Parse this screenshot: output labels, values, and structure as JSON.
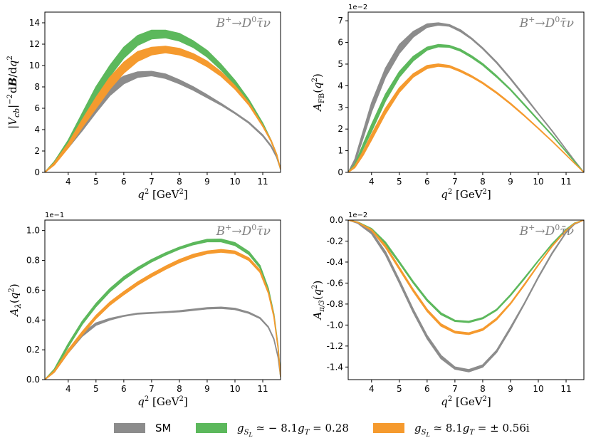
{
  "colors": {
    "sm": "#8c8c8c",
    "green": "#5cb85c",
    "orange": "#f59a2e"
  },
  "legend": [
    {
      "key": "sm",
      "label": "SM",
      "style": "sans"
    },
    {
      "key": "green",
      "label": "g_{S_L} ≃ −8.1g_T = 0.28",
      "style": "math",
      "base": "g",
      "sub": "S",
      "subsub": "L",
      "rest": " ≃ − 8.1",
      "base2": "g",
      "sub2": "T",
      "rest2": " = 0.28"
    },
    {
      "key": "orange",
      "label": "g_{S_L} ≃ 8.1g_T = ±0.56i",
      "style": "math",
      "base": "g",
      "sub": "S",
      "subsub": "L",
      "rest": " ≃ 8.1",
      "base2": "g",
      "sub2": "T",
      "rest2": " = ± 0.56i"
    }
  ],
  "chart_data": [
    {
      "type": "line",
      "panel": "top-left",
      "process": "B⁺→D⁰τ̄ν",
      "xlabel": "q² [GeV²]",
      "ylabel": "|V_cb|⁻² dB/dq²",
      "offset_text": "",
      "xlim": [
        3.16,
        11.64
      ],
      "ylim": [
        0,
        15
      ],
      "xticks": [
        4,
        5,
        6,
        7,
        8,
        9,
        10,
        11
      ],
      "yticks": [
        0,
        2,
        4,
        6,
        8,
        10,
        12,
        14
      ],
      "ytick_labels": [
        "0",
        "2",
        "4",
        "6",
        "8",
        "10",
        "12",
        "14"
      ],
      "grid": false,
      "series": [
        {
          "name": "SM",
          "key": "sm",
          "x": [
            3.16,
            3.5,
            4.0,
            4.5,
            5.0,
            5.5,
            6.0,
            6.5,
            7.0,
            7.5,
            8.0,
            8.5,
            9.0,
            9.5,
            10.0,
            10.5,
            11.0,
            11.3,
            11.5,
            11.64
          ],
          "lower": [
            0,
            0.8,
            2.3,
            3.9,
            5.6,
            7.2,
            8.3,
            8.9,
            9.05,
            8.8,
            8.3,
            7.7,
            7.0,
            6.3,
            5.5,
            4.6,
            3.4,
            2.4,
            1.4,
            0.3
          ],
          "upper": [
            0,
            1.0,
            2.8,
            4.6,
            6.5,
            8.2,
            9.0,
            9.4,
            9.45,
            9.2,
            8.65,
            8.0,
            7.25,
            6.45,
            5.6,
            4.7,
            3.5,
            2.5,
            1.5,
            0.3
          ]
        },
        {
          "name": "g_SL ≃ −8.1g_T = 0.28",
          "key": "green",
          "x": [
            3.16,
            3.5,
            4.0,
            4.5,
            5.0,
            5.5,
            6.0,
            6.5,
            7.0,
            7.5,
            8.0,
            8.5,
            9.0,
            9.5,
            10.0,
            10.5,
            11.0,
            11.3,
            11.5,
            11.64
          ],
          "lower": [
            0,
            0.8,
            2.6,
            4.8,
            7.0,
            9.0,
            10.7,
            11.9,
            12.5,
            12.6,
            12.3,
            11.7,
            10.8,
            9.6,
            8.2,
            6.5,
            4.4,
            2.9,
            1.6,
            0.3
          ],
          "upper": [
            0,
            1.0,
            3.0,
            5.5,
            8.0,
            10.0,
            11.7,
            12.8,
            13.3,
            13.3,
            13.0,
            12.3,
            11.4,
            10.1,
            8.6,
            6.8,
            4.6,
            3.0,
            1.7,
            0.3
          ]
        },
        {
          "name": "g_SL ≃ 8.1g_T = ±0.56i",
          "key": "orange",
          "x": [
            3.16,
            3.5,
            4.0,
            4.5,
            5.0,
            5.5,
            6.0,
            6.5,
            7.0,
            7.5,
            8.0,
            8.5,
            9.0,
            9.5,
            10.0,
            10.5,
            11.0,
            11.3,
            11.5,
            11.64
          ],
          "lower": [
            0,
            0.7,
            2.3,
            4.2,
            6.0,
            7.8,
            9.3,
            10.4,
            11.0,
            11.2,
            11.0,
            10.6,
            9.9,
            9.0,
            7.8,
            6.3,
            4.3,
            2.9,
            1.6,
            0.3
          ],
          "upper": [
            0,
            0.9,
            2.7,
            4.9,
            7.0,
            8.9,
            10.3,
            11.3,
            11.7,
            11.8,
            11.6,
            11.1,
            10.4,
            9.4,
            8.1,
            6.5,
            4.4,
            3.0,
            1.7,
            0.3
          ]
        }
      ]
    },
    {
      "type": "line",
      "panel": "top-right",
      "process": "B⁺→D⁰τ̄ν",
      "xlabel": "q² [GeV²]",
      "ylabel": "A_FB(q²)",
      "offset_text": "1e−2",
      "xlim": [
        3.16,
        11.64
      ],
      "ylim": [
        0,
        7.4
      ],
      "xticks": [
        4,
        5,
        6,
        7,
        8,
        9,
        10,
        11
      ],
      "yticks": [
        0,
        1,
        2,
        3,
        4,
        5,
        6,
        7
      ],
      "ytick_labels": [
        "0",
        "1",
        "2",
        "3",
        "4",
        "5",
        "6",
        "7"
      ],
      "grid": false,
      "series": [
        {
          "name": "SM",
          "key": "sm",
          "x": [
            3.16,
            3.4,
            3.7,
            4.0,
            4.5,
            5.0,
            5.5,
            6.0,
            6.4,
            6.8,
            7.2,
            7.6,
            8.0,
            8.5,
            9.0,
            9.5,
            10.0,
            10.5,
            11.0,
            11.3,
            11.64
          ],
          "lower": [
            0,
            0.45,
            1.6,
            2.8,
            4.4,
            5.5,
            6.25,
            6.7,
            6.8,
            6.75,
            6.5,
            6.15,
            5.7,
            5.05,
            4.3,
            3.5,
            2.7,
            1.9,
            1.05,
            0.55,
            0
          ],
          "upper": [
            0,
            0.6,
            1.9,
            3.2,
            4.8,
            5.9,
            6.5,
            6.85,
            6.9,
            6.82,
            6.58,
            6.2,
            5.75,
            5.1,
            4.35,
            3.55,
            2.72,
            1.92,
            1.06,
            0.55,
            0
          ]
        },
        {
          "name": "g_SL ≃ −8.1g_T = 0.28",
          "key": "green",
          "x": [
            3.16,
            3.4,
            3.7,
            4.0,
            4.5,
            5.0,
            5.5,
            6.0,
            6.4,
            6.8,
            7.2,
            7.6,
            8.0,
            8.5,
            9.0,
            9.5,
            10.0,
            10.5,
            11.0,
            11.3,
            11.64
          ],
          "lower": [
            0,
            0.3,
            1.1,
            1.9,
            3.3,
            4.4,
            5.15,
            5.65,
            5.8,
            5.78,
            5.6,
            5.3,
            4.95,
            4.4,
            3.8,
            3.1,
            2.4,
            1.7,
            0.95,
            0.5,
            0
          ],
          "upper": [
            0,
            0.38,
            1.3,
            2.2,
            3.6,
            4.65,
            5.35,
            5.78,
            5.9,
            5.86,
            5.68,
            5.38,
            5.02,
            4.46,
            3.84,
            3.14,
            2.43,
            1.72,
            0.96,
            0.5,
            0
          ]
        },
        {
          "name": "g_SL ≃ 8.1g_T = ±0.56i",
          "key": "orange",
          "x": [
            3.16,
            3.4,
            3.7,
            4.0,
            4.5,
            5.0,
            5.5,
            6.0,
            6.4,
            6.8,
            7.2,
            7.6,
            8.0,
            8.5,
            9.0,
            9.5,
            10.0,
            10.5,
            11.0,
            11.3,
            11.64
          ],
          "lower": [
            0,
            0.22,
            0.8,
            1.5,
            2.7,
            3.7,
            4.4,
            4.8,
            4.9,
            4.85,
            4.65,
            4.4,
            4.1,
            3.65,
            3.15,
            2.6,
            2.02,
            1.43,
            0.8,
            0.42,
            0
          ],
          "upper": [
            0,
            0.3,
            0.98,
            1.75,
            2.95,
            3.9,
            4.55,
            4.93,
            5.0,
            4.93,
            4.72,
            4.46,
            4.15,
            3.7,
            3.19,
            2.63,
            2.04,
            1.44,
            0.81,
            0.42,
            0
          ]
        }
      ]
    },
    {
      "type": "line",
      "panel": "bottom-left",
      "process": "B⁺→D⁰τ̄ν",
      "xlabel": "q² [GeV²]",
      "ylabel": "A_λ(q²)",
      "offset_text": "1e−1",
      "xlim": [
        3.16,
        11.64
      ],
      "ylim": [
        0,
        1.07
      ],
      "xticks": [
        4,
        5,
        6,
        7,
        8,
        9,
        10,
        11
      ],
      "yticks": [
        0,
        0.2,
        0.4,
        0.6,
        0.8,
        1.0
      ],
      "ytick_labels": [
        "0.0",
        "0.2",
        "0.4",
        "0.6",
        "0.8",
        "1.0"
      ],
      "grid": false,
      "series": [
        {
          "name": "SM",
          "key": "sm",
          "x": [
            3.16,
            3.5,
            4.0,
            4.5,
            5.0,
            5.5,
            6.0,
            6.5,
            7.0,
            7.5,
            8.0,
            8.5,
            9.0,
            9.5,
            10.0,
            10.5,
            10.9,
            11.2,
            11.4,
            11.55,
            11.64
          ],
          "lower": [
            0,
            0.05,
            0.18,
            0.29,
            0.365,
            0.4,
            0.425,
            0.44,
            0.445,
            0.45,
            0.455,
            0.465,
            0.475,
            0.478,
            0.47,
            0.445,
            0.41,
            0.35,
            0.27,
            0.15,
            0.02
          ],
          "upper": [
            0,
            0.06,
            0.2,
            0.31,
            0.38,
            0.41,
            0.43,
            0.445,
            0.45,
            0.455,
            0.462,
            0.472,
            0.482,
            0.486,
            0.478,
            0.452,
            0.416,
            0.355,
            0.275,
            0.155,
            0.02
          ]
        },
        {
          "name": "g_SL ≃ −8.1g_T = 0.28",
          "key": "green",
          "x": [
            3.16,
            3.5,
            4.0,
            4.5,
            5.0,
            5.5,
            6.0,
            6.5,
            7.0,
            7.5,
            8.0,
            8.5,
            9.0,
            9.5,
            10.0,
            10.5,
            10.9,
            11.2,
            11.4,
            11.55,
            11.64
          ],
          "lower": [
            0,
            0.06,
            0.22,
            0.37,
            0.49,
            0.59,
            0.67,
            0.735,
            0.79,
            0.835,
            0.875,
            0.905,
            0.925,
            0.925,
            0.9,
            0.84,
            0.75,
            0.6,
            0.43,
            0.22,
            0.02
          ],
          "upper": [
            0,
            0.07,
            0.24,
            0.39,
            0.51,
            0.61,
            0.69,
            0.752,
            0.805,
            0.85,
            0.888,
            0.918,
            0.94,
            0.942,
            0.918,
            0.858,
            0.765,
            0.612,
            0.44,
            0.225,
            0.02
          ]
        },
        {
          "name": "g_SL ≃ 8.1g_T = ±0.56i",
          "key": "orange",
          "x": [
            3.16,
            3.5,
            4.0,
            4.5,
            5.0,
            5.5,
            6.0,
            6.5,
            7.0,
            7.5,
            8.0,
            8.5,
            9.0,
            9.5,
            10.0,
            10.5,
            10.9,
            11.2,
            11.4,
            11.55,
            11.64
          ],
          "lower": [
            0,
            0.05,
            0.18,
            0.3,
            0.41,
            0.5,
            0.57,
            0.635,
            0.69,
            0.74,
            0.785,
            0.82,
            0.845,
            0.855,
            0.845,
            0.8,
            0.72,
            0.58,
            0.42,
            0.21,
            0.02
          ],
          "upper": [
            0,
            0.06,
            0.2,
            0.32,
            0.43,
            0.52,
            0.59,
            0.655,
            0.71,
            0.76,
            0.805,
            0.84,
            0.862,
            0.872,
            0.862,
            0.816,
            0.735,
            0.592,
            0.43,
            0.215,
            0.02
          ]
        }
      ]
    },
    {
      "type": "line",
      "panel": "bottom-right",
      "process": "B⁺→D⁰τ̄ν",
      "xlabel": "q² [GeV²]",
      "ylabel": "A_π/3(q²)",
      "offset_text": "1e−2",
      "xlim": [
        3.16,
        11.64
      ],
      "ylim": [
        -1.52,
        0
      ],
      "xticks": [
        4,
        5,
        6,
        7,
        8,
        9,
        10,
        11
      ],
      "yticks": [
        0,
        -0.2,
        -0.4,
        -0.6,
        -0.8,
        -1.0,
        -1.2,
        -1.4
      ],
      "ytick_labels": [
        "0.0",
        "-0.2",
        "-0.4",
        "-0.6",
        "-0.8",
        "-1.0",
        "-1.2",
        "-1.4"
      ],
      "grid": false,
      "series": [
        {
          "name": "SM",
          "key": "sm",
          "x": [
            3.16,
            3.5,
            4.0,
            4.5,
            5.0,
            5.5,
            6.0,
            6.5,
            7.0,
            7.5,
            8.0,
            8.5,
            9.0,
            9.5,
            10.0,
            10.5,
            11.0,
            11.3,
            11.64
          ],
          "lower": [
            0,
            -0.03,
            -0.13,
            -0.33,
            -0.6,
            -0.88,
            -1.13,
            -1.32,
            -1.42,
            -1.445,
            -1.4,
            -1.26,
            -1.04,
            -0.8,
            -0.55,
            -0.32,
            -0.12,
            -0.04,
            0
          ],
          "upper": [
            0,
            -0.025,
            -0.11,
            -0.3,
            -0.57,
            -0.85,
            -1.1,
            -1.29,
            -1.4,
            -1.425,
            -1.38,
            -1.24,
            -1.02,
            -0.79,
            -0.54,
            -0.31,
            -0.115,
            -0.038,
            0
          ]
        },
        {
          "name": "g_SL ≃ −8.1g_T = 0.28",
          "key": "green",
          "x": [
            3.16,
            3.5,
            4.0,
            4.5,
            5.0,
            5.5,
            6.0,
            6.5,
            7.0,
            7.5,
            8.0,
            8.5,
            9.0,
            9.5,
            10.0,
            10.5,
            11.0,
            11.3,
            11.64
          ],
          "lower": [
            0,
            -0.02,
            -0.09,
            -0.23,
            -0.41,
            -0.6,
            -0.77,
            -0.9,
            -0.965,
            -0.975,
            -0.94,
            -0.86,
            -0.72,
            -0.56,
            -0.39,
            -0.23,
            -0.09,
            -0.03,
            0
          ],
          "upper": [
            0,
            -0.018,
            -0.08,
            -0.21,
            -0.395,
            -0.585,
            -0.755,
            -0.885,
            -0.955,
            -0.965,
            -0.93,
            -0.85,
            -0.71,
            -0.55,
            -0.385,
            -0.225,
            -0.088,
            -0.029,
            0
          ]
        },
        {
          "name": "g_SL ≃ 8.1g_T = ±0.56i",
          "key": "orange",
          "x": [
            3.16,
            3.5,
            4.0,
            4.5,
            5.0,
            5.5,
            6.0,
            6.5,
            7.0,
            7.5,
            8.0,
            8.5,
            9.0,
            9.5,
            10.0,
            10.5,
            11.0,
            11.3,
            11.64
          ],
          "lower": [
            0,
            -0.022,
            -0.1,
            -0.26,
            -0.47,
            -0.68,
            -0.87,
            -1.01,
            -1.075,
            -1.09,
            -1.05,
            -0.95,
            -0.8,
            -0.62,
            -0.43,
            -0.25,
            -0.1,
            -0.033,
            0
          ],
          "upper": [
            0,
            -0.02,
            -0.09,
            -0.24,
            -0.45,
            -0.66,
            -0.85,
            -0.99,
            -1.06,
            -1.075,
            -1.035,
            -0.935,
            -0.79,
            -0.61,
            -0.425,
            -0.245,
            -0.098,
            -0.032,
            0
          ]
        }
      ]
    }
  ]
}
